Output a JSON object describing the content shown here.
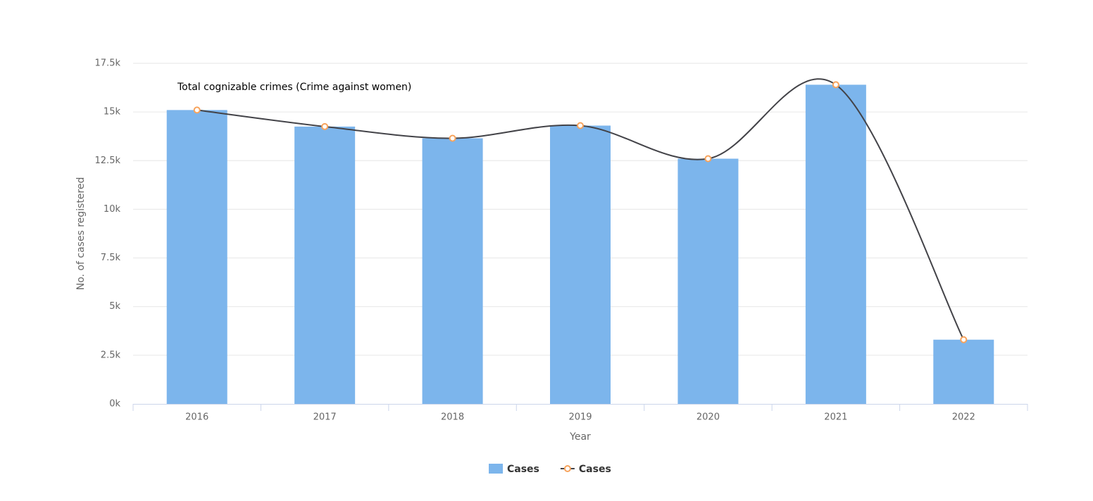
{
  "chart_data": {
    "type": "combo",
    "title": "Total cognizable crimes (Crime against women)",
    "x_label": "Year",
    "y_label": "No. of cases registered",
    "categories": [
      "2016",
      "2017",
      "2018",
      "2019",
      "2020",
      "2021",
      "2022"
    ],
    "series": [
      {
        "name": "Cases",
        "type": "bar",
        "color": "#7cb5ec",
        "values": [
          15100,
          14250,
          13650,
          14300,
          12600,
          16400,
          3300
        ]
      },
      {
        "name": "Cases",
        "type": "line",
        "color": "#434348",
        "marker_color": "#f7a35c",
        "values": [
          15100,
          14250,
          13650,
          14300,
          12600,
          16400,
          3300
        ]
      }
    ],
    "ylim": [
      0,
      17500
    ],
    "yticks": [
      {
        "value": 0,
        "label": "0k"
      },
      {
        "value": 2500,
        "label": "2.5k"
      },
      {
        "value": 5000,
        "label": "5k"
      },
      {
        "value": 7500,
        "label": "7.5k"
      },
      {
        "value": 10000,
        "label": "10k"
      },
      {
        "value": 12500,
        "label": "12.5k"
      },
      {
        "value": 15000,
        "label": "15k"
      },
      {
        "value": 17500,
        "label": "17.5k"
      }
    ],
    "grid": true
  }
}
